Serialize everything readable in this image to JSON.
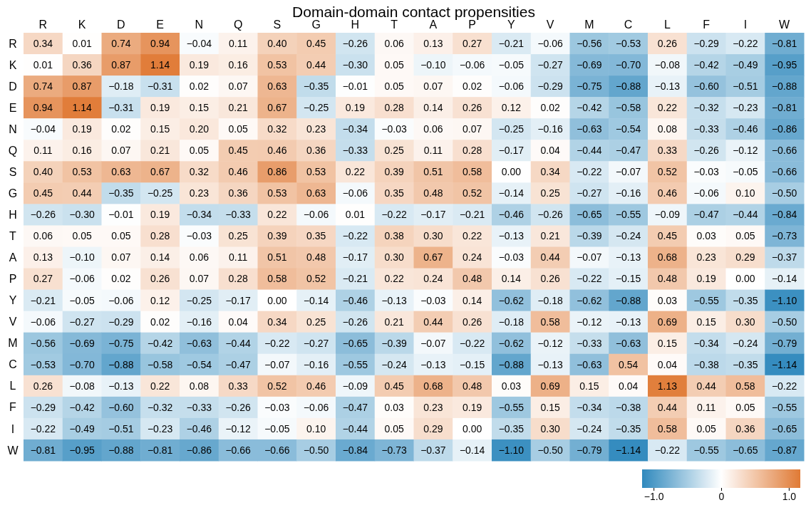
{
  "chart_data": {
    "type": "heatmap",
    "title": "Domain-domain contact propensities",
    "categories": [
      "R",
      "K",
      "D",
      "E",
      "N",
      "Q",
      "S",
      "G",
      "H",
      "T",
      "A",
      "P",
      "Y",
      "V",
      "M",
      "C",
      "L",
      "F",
      "I",
      "W"
    ],
    "y_categories": [
      "R",
      "K",
      "D",
      "E",
      "N",
      "Q",
      "S",
      "G",
      "H",
      "T",
      "A",
      "P",
      "Y",
      "V",
      "M",
      "C",
      "L",
      "F",
      "I",
      "W"
    ],
    "cells": [
      [
        0.34,
        0.01,
        0.74,
        0.94,
        -0.04,
        0.11,
        0.4,
        0.45,
        -0.26,
        0.06,
        0.13,
        0.27,
        -0.21,
        -0.06,
        -0.56,
        -0.53,
        0.26,
        -0.29,
        -0.22,
        -0.81
      ],
      [
        0.01,
        0.36,
        0.87,
        1.14,
        0.19,
        0.16,
        0.53,
        0.44,
        -0.3,
        0.05,
        -0.1,
        -0.06,
        -0.05,
        -0.27,
        -0.69,
        -0.7,
        -0.08,
        -0.42,
        -0.49,
        -0.95
      ],
      [
        0.74,
        0.87,
        -0.18,
        -0.31,
        0.02,
        0.07,
        0.63,
        -0.35,
        -0.01,
        0.05,
        0.07,
        0.02,
        -0.06,
        -0.29,
        -0.75,
        -0.88,
        -0.13,
        -0.6,
        -0.51,
        -0.88
      ],
      [
        0.94,
        1.14,
        -0.31,
        0.19,
        0.15,
        0.21,
        0.67,
        -0.25,
        0.19,
        0.28,
        0.14,
        0.26,
        0.12,
        0.02,
        -0.42,
        -0.58,
        0.22,
        -0.32,
        -0.23,
        -0.81
      ],
      [
        -0.04,
        0.19,
        0.02,
        0.15,
        0.2,
        0.05,
        0.32,
        0.23,
        -0.34,
        -0.03,
        0.06,
        0.07,
        -0.25,
        -0.16,
        -0.63,
        -0.54,
        0.08,
        -0.33,
        -0.46,
        -0.86
      ],
      [
        0.11,
        0.16,
        0.07,
        0.21,
        0.05,
        0.45,
        0.46,
        0.36,
        -0.33,
        0.25,
        0.11,
        0.28,
        -0.17,
        0.04,
        -0.44,
        -0.47,
        0.33,
        -0.26,
        -0.12,
        -0.66
      ],
      [
        0.4,
        0.53,
        0.63,
        0.67,
        0.32,
        0.46,
        0.86,
        0.53,
        0.22,
        0.39,
        0.51,
        0.58,
        0.0,
        0.34,
        -0.22,
        -0.07,
        0.52,
        -0.03,
        -0.05,
        -0.66
      ],
      [
        0.45,
        0.44,
        -0.35,
        -0.25,
        0.23,
        0.36,
        0.53,
        0.63,
        -0.06,
        0.35,
        0.48,
        0.52,
        -0.14,
        0.25,
        -0.27,
        -0.16,
        0.46,
        -0.06,
        0.1,
        -0.5
      ],
      [
        -0.26,
        -0.3,
        -0.01,
        0.19,
        -0.34,
        -0.33,
        0.22,
        -0.06,
        0.01,
        -0.22,
        -0.17,
        -0.21,
        -0.46,
        -0.26,
        -0.65,
        -0.55,
        -0.09,
        -0.47,
        -0.44,
        -0.84
      ],
      [
        0.06,
        0.05,
        0.05,
        0.28,
        -0.03,
        0.25,
        0.39,
        0.35,
        -0.22,
        0.38,
        0.3,
        0.22,
        -0.13,
        0.21,
        -0.39,
        -0.24,
        0.45,
        0.03,
        0.05,
        -0.73
      ],
      [
        0.13,
        -0.1,
        0.07,
        0.14,
        0.06,
        0.11,
        0.51,
        0.48,
        -0.17,
        0.3,
        0.67,
        0.24,
        -0.03,
        0.44,
        -0.07,
        -0.13,
        0.68,
        0.23,
        0.29,
        -0.37
      ],
      [
        0.27,
        -0.06,
        0.02,
        0.26,
        0.07,
        0.28,
        0.58,
        0.52,
        -0.21,
        0.22,
        0.24,
        0.48,
        0.14,
        0.26,
        -0.22,
        -0.15,
        0.48,
        0.19,
        0.0,
        -0.14
      ],
      [
        -0.21,
        -0.05,
        -0.06,
        0.12,
        -0.25,
        -0.17,
        0.0,
        -0.14,
        -0.46,
        -0.13,
        -0.03,
        0.14,
        -0.62,
        -0.18,
        -0.62,
        -0.88,
        0.03,
        -0.55,
        -0.35,
        -1.1
      ],
      [
        -0.06,
        -0.27,
        -0.29,
        0.02,
        -0.16,
        0.04,
        0.34,
        0.25,
        -0.26,
        0.21,
        0.44,
        0.26,
        -0.18,
        0.58,
        -0.12,
        -0.13,
        0.69,
        0.15,
        0.3,
        -0.5
      ],
      [
        -0.56,
        -0.69,
        -0.75,
        -0.42,
        -0.63,
        -0.44,
        -0.22,
        -0.27,
        -0.65,
        -0.39,
        -0.07,
        -0.22,
        -0.62,
        -0.12,
        -0.33,
        -0.63,
        0.15,
        -0.34,
        -0.24,
        -0.79
      ],
      [
        -0.53,
        -0.7,
        -0.88,
        -0.58,
        -0.54,
        -0.47,
        -0.07,
        -0.16,
        -0.55,
        -0.24,
        -0.13,
        -0.15,
        -0.88,
        -0.13,
        -0.63,
        0.54,
        0.04,
        -0.38,
        -0.35,
        -1.14
      ],
      [
        0.26,
        -0.08,
        -0.13,
        0.22,
        0.08,
        0.33,
        0.52,
        0.46,
        -0.09,
        0.45,
        0.68,
        0.48,
        0.03,
        0.69,
        0.15,
        0.04,
        1.13,
        0.44,
        0.58,
        -0.22
      ],
      [
        -0.29,
        -0.42,
        -0.6,
        -0.32,
        -0.33,
        -0.26,
        -0.03,
        -0.06,
        -0.47,
        0.03,
        0.23,
        0.19,
        -0.55,
        0.15,
        -0.34,
        -0.38,
        0.44,
        0.11,
        0.05,
        -0.55
      ],
      [
        -0.22,
        -0.49,
        -0.51,
        -0.23,
        -0.46,
        -0.12,
        -0.05,
        0.1,
        -0.44,
        0.05,
        0.29,
        0.0,
        -0.35,
        0.3,
        -0.24,
        -0.35,
        0.58,
        0.05,
        0.36,
        -0.65
      ],
      [
        -0.81,
        -0.95,
        -0.88,
        -0.81,
        -0.86,
        -0.66,
        -0.66,
        -0.5,
        -0.84,
        -0.73,
        -0.37,
        -0.14,
        -1.1,
        -0.5,
        -0.79,
        -1.14,
        -0.22,
        -0.55,
        -0.65,
        -0.87
      ]
    ],
    "data_labels": true,
    "cell_labels": [
      [
        "0.34",
        "0.01",
        "0.74",
        "0.94",
        "−0.04",
        "0.11",
        "0.40",
        "0.45",
        "−0.26",
        "0.06",
        "0.13",
        "0.27",
        "−0.21",
        "−0.06",
        "−0.56",
        "−0.53",
        "0.26",
        "−0.29",
        "−0.22",
        "−0.81"
      ],
      [
        "0.01",
        "0.36",
        "0.87",
        "1.14",
        "0.19",
        "0.16",
        "0.53",
        "0.44",
        "−0.30",
        "0.05",
        "−0.10",
        "−0.06",
        "−0.05",
        "−0.27",
        "−0.69",
        "−0.70",
        "−0.08",
        "−0.42",
        "−0.49",
        "−0.95"
      ],
      [
        "0.74",
        "0.87",
        "−0.18",
        "−0.31",
        "0.02",
        "0.07",
        "0.63",
        "−0.35",
        "−0.01",
        "0.05",
        "0.07",
        "0.02",
        "−0.06",
        "−0.29",
        "−0.75",
        "−0.88",
        "−0.13",
        "−0.60",
        "−0.51",
        "−0.88"
      ],
      [
        "0.94",
        "1.14",
        "−0.31",
        "0.19",
        "0.15",
        "0.21",
        "0.67",
        "−0.25",
        "0.19",
        "0.28",
        "0.14",
        "0.26",
        "0.12",
        "0.02",
        "−0.42",
        "−0.58",
        "0.22",
        "−0.32",
        "−0.23",
        "−0.81"
      ],
      [
        "−0.04",
        "0.19",
        "0.02",
        "0.15",
        "0.20",
        "0.05",
        "0.32",
        "0.23",
        "−0.34",
        "−0.03",
        "0.06",
        "0.07",
        "−0.25",
        "−0.16",
        "−0.63",
        "−0.54",
        "0.08",
        "−0.33",
        "−0.46",
        "−0.86"
      ],
      [
        "0.11",
        "0.16",
        "0.07",
        "0.21",
        "0.05",
        "0.45",
        "0.46",
        "0.36",
        "−0.33",
        "0.25",
        "0.11",
        "0.28",
        "−0.17",
        "0.04",
        "−0.44",
        "−0.47",
        "0.33",
        "−0.26",
        "−0.12",
        "−0.66"
      ],
      [
        "0.40",
        "0.53",
        "0.63",
        "0.67",
        "0.32",
        "0.46",
        "0.86",
        "0.53",
        "0.22",
        "0.39",
        "0.51",
        "0.58",
        "0.00",
        "0.34",
        "−0.22",
        "−0.07",
        "0.52",
        "−0.03",
        "−0.05",
        "−0.66"
      ],
      [
        "0.45",
        "0.44",
        "−0.35",
        "−0.25",
        "0.23",
        "0.36",
        "0.53",
        "0.63",
        "−0.06",
        "0.35",
        "0.48",
        "0.52",
        "−0.14",
        "0.25",
        "−0.27",
        "−0.16",
        "0.46",
        "−0.06",
        "0.10",
        "−0.50"
      ],
      [
        "−0.26",
        "−0.30",
        "−0.01",
        "0.19",
        "−0.34",
        "−0.33",
        "0.22",
        "−0.06",
        "0.01",
        "−0.22",
        "−0.17",
        "−0.21",
        "−0.46",
        "−0.26",
        "−0.65",
        "−0.55",
        "−0.09",
        "−0.47",
        "−0.44",
        "−0.84"
      ],
      [
        "0.06",
        "0.05",
        "0.05",
        "0.28",
        "−0.03",
        "0.25",
        "0.39",
        "0.35",
        "−0.22",
        "0.38",
        "0.30",
        "0.22",
        "−0.13",
        "0.21",
        "−0.39",
        "−0.24",
        "0.45",
        "0.03",
        "0.05",
        "−0.73"
      ],
      [
        "0.13",
        "−0.10",
        "0.07",
        "0.14",
        "0.06",
        "0.11",
        "0.51",
        "0.48",
        "−0.17",
        "0.30",
        "0.67",
        "0.24",
        "−0.03",
        "0.44",
        "−0.07",
        "−0.13",
        "0.68",
        "0.23",
        "0.29",
        "−0.37"
      ],
      [
        "0.27",
        "−0.06",
        "0.02",
        "0.26",
        "0.07",
        "0.28",
        "0.58",
        "0.52",
        "−0.21",
        "0.22",
        "0.24",
        "0.48",
        "0.14",
        "0.26",
        "−0.22",
        "−0.15",
        "0.48",
        "0.19",
        "0.00",
        "−0.14"
      ],
      [
        "−0.21",
        "−0.05",
        "−0.06",
        "0.12",
        "−0.25",
        "−0.17",
        "0.00",
        "−0.14",
        "−0.46",
        "−0.13",
        "−0.03",
        "0.14",
        "−0.62",
        "−0.18",
        "−0.62",
        "−0.88",
        "0.03",
        "−0.55",
        "−0.35",
        "−1.10"
      ],
      [
        "−0.06",
        "−0.27",
        "−0.29",
        "0.02",
        "−0.16",
        "0.04",
        "0.34",
        "0.25",
        "−0.26",
        "0.21",
        "0.44",
        "0.26",
        "−0.18",
        "0.58",
        "−0.12",
        "−0.13",
        "0.69",
        "0.15",
        "0.30",
        "−0.50"
      ],
      [
        "−0.56",
        "−0.69",
        "−0.75",
        "−0.42",
        "−0.63",
        "−0.44",
        "−0.22",
        "−0.27",
        "−0.65",
        "−0.39",
        "−0.07",
        "−0.22",
        "−0.62",
        "−0.12",
        "−0.33",
        "−0.63",
        "0.15",
        "−0.34",
        "−0.24",
        "−0.79"
      ],
      [
        "−0.53",
        "−0.70",
        "−0.88",
        "−0.58",
        "−0.54",
        "−0.47",
        "−0.07",
        "−0.16",
        "−0.55",
        "−0.24",
        "−0.13",
        "−0.15",
        "−0.88",
        "−0.13",
        "−0.63",
        "0.54",
        "0.04",
        "−0.38",
        "−0.35",
        "−1.14"
      ],
      [
        "0.26",
        "−0.08",
        "−0.13",
        "0.22",
        "0.08",
        "0.33",
        "0.52",
        "0.46",
        "−0.09",
        "0.45",
        "0.68",
        "0.48",
        "0.03",
        "0.69",
        "0.15",
        "0.04",
        "1.13",
        "0.44",
        "0.58",
        "−0.22"
      ],
      [
        "−0.29",
        "−0.42",
        "−0.60",
        "−0.32",
        "−0.33",
        "−0.26",
        "−0.03",
        "−0.06",
        "−0.47",
        "0.03",
        "0.23",
        "0.19",
        "−0.55",
        "0.15",
        "−0.34",
        "−0.38",
        "0.44",
        "0.11",
        "0.05",
        "−0.55"
      ],
      [
        "−0.22",
        "−0.49",
        "−0.51",
        "−0.23",
        "−0.46",
        "−0.12",
        "−0.05",
        "0.10",
        "−0.44",
        "0.05",
        "0.29",
        "0.00",
        "−0.35",
        "0.30",
        "−0.24",
        "−0.35",
        "0.58",
        "0.05",
        "0.36",
        "−0.65"
      ],
      [
        "−0.81",
        "−0.95",
        "−0.88",
        "−0.81",
        "−0.86",
        "−0.66",
        "−0.66",
        "−0.50",
        "−0.84",
        "−0.73",
        "−0.37",
        "−0.14",
        "−1.10",
        "−0.50",
        "−0.79",
        "−1.14",
        "−0.22",
        "−0.55",
        "−0.65",
        "−0.87"
      ]
    ],
    "clim": [
      -1.17,
      1.17
    ],
    "cticks": [
      {
        "value": -1,
        "label": "−1.0"
      },
      0,
      {
        "value": 1,
        "label": "1.0"
      }
    ]
  }
}
